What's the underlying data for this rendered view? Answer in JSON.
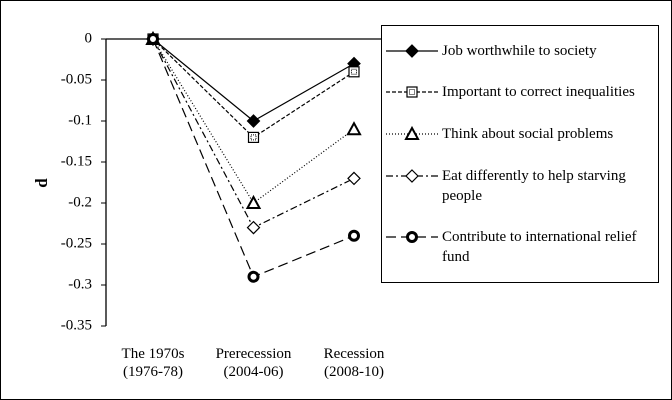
{
  "chart_data": {
    "type": "line",
    "ylabel": "d",
    "categories": [
      "The 1970s (1976-78)",
      "Prerecession (2004-06)",
      "Recession (2008-10)"
    ],
    "ylim": [
      -0.35,
      0
    ],
    "yticks": [
      0,
      -0.05,
      -0.1,
      -0.15,
      -0.2,
      -0.25,
      -0.3,
      -0.35
    ],
    "legend": "right",
    "series": [
      {
        "name": "Job worthwhile to society",
        "color": "#000000",
        "marker": "diamond-filled",
        "line_style": "solid",
        "values": [
          0,
          -0.1,
          -0.03
        ]
      },
      {
        "name": "Important to correct inequalities",
        "color": "#000000",
        "marker": "square-dotted",
        "line_style": "dashed",
        "values": [
          0,
          -0.12,
          -0.04
        ]
      },
      {
        "name": "Think about social problems",
        "color": "#000000",
        "marker": "triangle",
        "line_style": "dotted",
        "values": [
          0,
          -0.2,
          -0.11
        ]
      },
      {
        "name": "Eat differently to help starving people",
        "color": "#000000",
        "marker": "diamond-open",
        "line_style": "dashdot",
        "values": [
          0,
          -0.23,
          -0.17
        ]
      },
      {
        "name": "Contribute to international relief fund",
        "color": "#000000",
        "marker": "circle-bold",
        "line_style": "longdash",
        "values": [
          0,
          -0.29,
          -0.24
        ]
      }
    ]
  }
}
